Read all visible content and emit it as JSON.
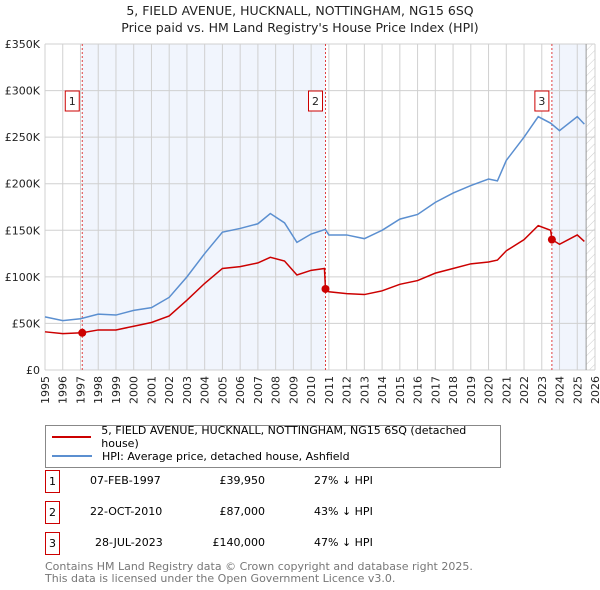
{
  "chart_data": {
    "type": "line",
    "title": "5, FIELD AVENUE, HUCKNALL, NOTTINGHAM, NG15 6SQ",
    "subtitle": "Price paid vs. HM Land Registry's House Price Index (HPI)",
    "xlim": [
      1995,
      2026
    ],
    "ylim": [
      0,
      350000
    ],
    "x_ticks": [
      "1995",
      "1996",
      "1997",
      "1998",
      "1999",
      "2000",
      "2001",
      "2002",
      "2003",
      "2004",
      "2005",
      "2006",
      "2007",
      "2008",
      "2009",
      "2010",
      "2011",
      "2012",
      "2013",
      "2014",
      "2015",
      "2016",
      "2017",
      "2018",
      "2019",
      "2020",
      "2021",
      "2022",
      "2023",
      "2024",
      "2025",
      "2026"
    ],
    "y_ticks": [
      {
        "v": 0,
        "label": "£0"
      },
      {
        "v": 50000,
        "label": "£50K"
      },
      {
        "v": 100000,
        "label": "£100K"
      },
      {
        "v": 150000,
        "label": "£150K"
      },
      {
        "v": 200000,
        "label": "£200K"
      },
      {
        "v": 250000,
        "label": "£250K"
      },
      {
        "v": 300000,
        "label": "£300K"
      },
      {
        "v": 350000,
        "label": "£350K"
      }
    ],
    "grid": true,
    "series": [
      {
        "name": "5, FIELD AVENUE, HUCKNALL, NOTTINGHAM, NG15 6SQ (detached house)",
        "color": "#cc0000",
        "x": [
          1995,
          1996,
          1997.1,
          1998,
          1999,
          2000,
          2001,
          2002,
          2003,
          2004,
          2005,
          2006,
          2007,
          2007.7,
          2008.5,
          2009.2,
          2010,
          2010.75,
          2010.81,
          2011,
          2012,
          2013,
          2014,
          2015,
          2016,
          2017,
          2018,
          2019,
          2020,
          2020.5,
          2021,
          2022,
          2022.8,
          2023.5,
          2023.57,
          2024,
          2025,
          2025.4
        ],
        "y": [
          41000,
          39000,
          39950,
          43000,
          43000,
          47000,
          51000,
          58000,
          75000,
          93000,
          109000,
          111000,
          115000,
          121000,
          117000,
          102000,
          107000,
          109000,
          87000,
          84000,
          82000,
          81000,
          85000,
          92000,
          96000,
          104000,
          109000,
          114000,
          116000,
          118000,
          128000,
          140000,
          155000,
          150000,
          140000,
          135000,
          145000,
          138000
        ]
      },
      {
        "name": "HPI: Average price, detached house, Ashfield",
        "color": "#5b8fd0",
        "x": [
          1995,
          1996,
          1997,
          1998,
          1999,
          2000,
          2001,
          2002,
          2003,
          2004,
          2005,
          2006,
          2007,
          2007.7,
          2008.5,
          2009.2,
          2010,
          2010.8,
          2011,
          2012,
          2013,
          2014,
          2015,
          2016,
          2017,
          2018,
          2019,
          2020,
          2020.5,
          2021,
          2022,
          2022.8,
          2023.5,
          2024,
          2025,
          2025.4
        ],
        "y": [
          57000,
          53000,
          55000,
          60000,
          59000,
          64000,
          67000,
          78000,
          100000,
          125000,
          148000,
          152000,
          157000,
          168000,
          158000,
          137000,
          146000,
          151000,
          145000,
          145000,
          141000,
          150000,
          162000,
          167000,
          180000,
          190000,
          198000,
          205000,
          203000,
          225000,
          250000,
          272000,
          265000,
          257000,
          272000,
          264000
        ]
      }
    ],
    "sales": [
      {
        "n": "1",
        "x": 1997.1,
        "y": 39950,
        "date": "07-FEB-1997",
        "price": "£39,950",
        "delta": "27% ↓ HPI"
      },
      {
        "n": "2",
        "x": 2010.81,
        "y": 87000,
        "date": "22-OCT-2010",
        "price": "£87,000",
        "delta": "43% ↓ HPI"
      },
      {
        "n": "3",
        "x": 2023.57,
        "y": 140000,
        "date": "28-JUL-2023",
        "price": "£140,000",
        "delta": "47% ↓ HPI"
      }
    ],
    "forecast_start": 2025.5,
    "legend_placement": "below"
  },
  "footer": [
    "Contains HM Land Registry data © Crown copyright and database right 2025.",
    "This data is licensed under the Open Government Licence v3.0."
  ]
}
